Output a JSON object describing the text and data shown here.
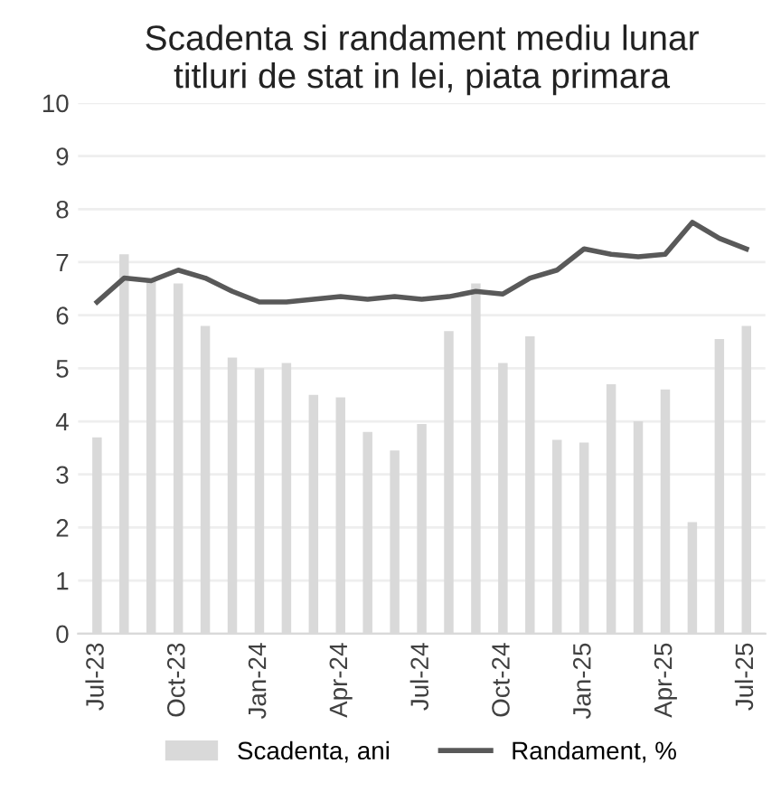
{
  "chart_data": {
    "type": "bar",
    "title": "Scadenta si randament mediu lunar\ntitluri de stat in lei, piata primara",
    "categories": [
      "Jul-23",
      null,
      null,
      "Oct-23",
      null,
      null,
      "Jan-24",
      null,
      null,
      "Apr-24",
      null,
      null,
      "Jul-24",
      null,
      null,
      "Oct-24",
      null,
      null,
      "Jan-25",
      null,
      null,
      "Apr-25",
      null,
      null,
      "Jul-25"
    ],
    "series": [
      {
        "name": "Scadenta, ani",
        "color": "#d9d9d9",
        "values": [
          3.7,
          7.15,
          6.65,
          6.6,
          5.8,
          5.2,
          5.0,
          5.1,
          4.5,
          4.45,
          3.8,
          3.45,
          3.95,
          5.7,
          6.6,
          5.1,
          5.6,
          3.65,
          3.6,
          4.7,
          4.0,
          4.6,
          2.1,
          5.55,
          5.8
        ]
      },
      {
        "name": "Randament, %",
        "type": "line",
        "color": "#595959",
        "values": [
          6.25,
          6.7,
          6.65,
          6.85,
          6.7,
          6.45,
          6.25,
          6.25,
          6.3,
          6.35,
          6.3,
          6.35,
          6.3,
          6.35,
          6.45,
          6.4,
          6.7,
          6.85,
          7.25,
          7.15,
          7.1,
          7.15,
          7.75,
          7.45,
          7.25
        ]
      }
    ],
    "ylim": [
      0,
      10
    ],
    "yticks": [
      0,
      1,
      2,
      3,
      4,
      5,
      6,
      7,
      8,
      9,
      10
    ],
    "grid": "y",
    "legend": "bottom"
  }
}
